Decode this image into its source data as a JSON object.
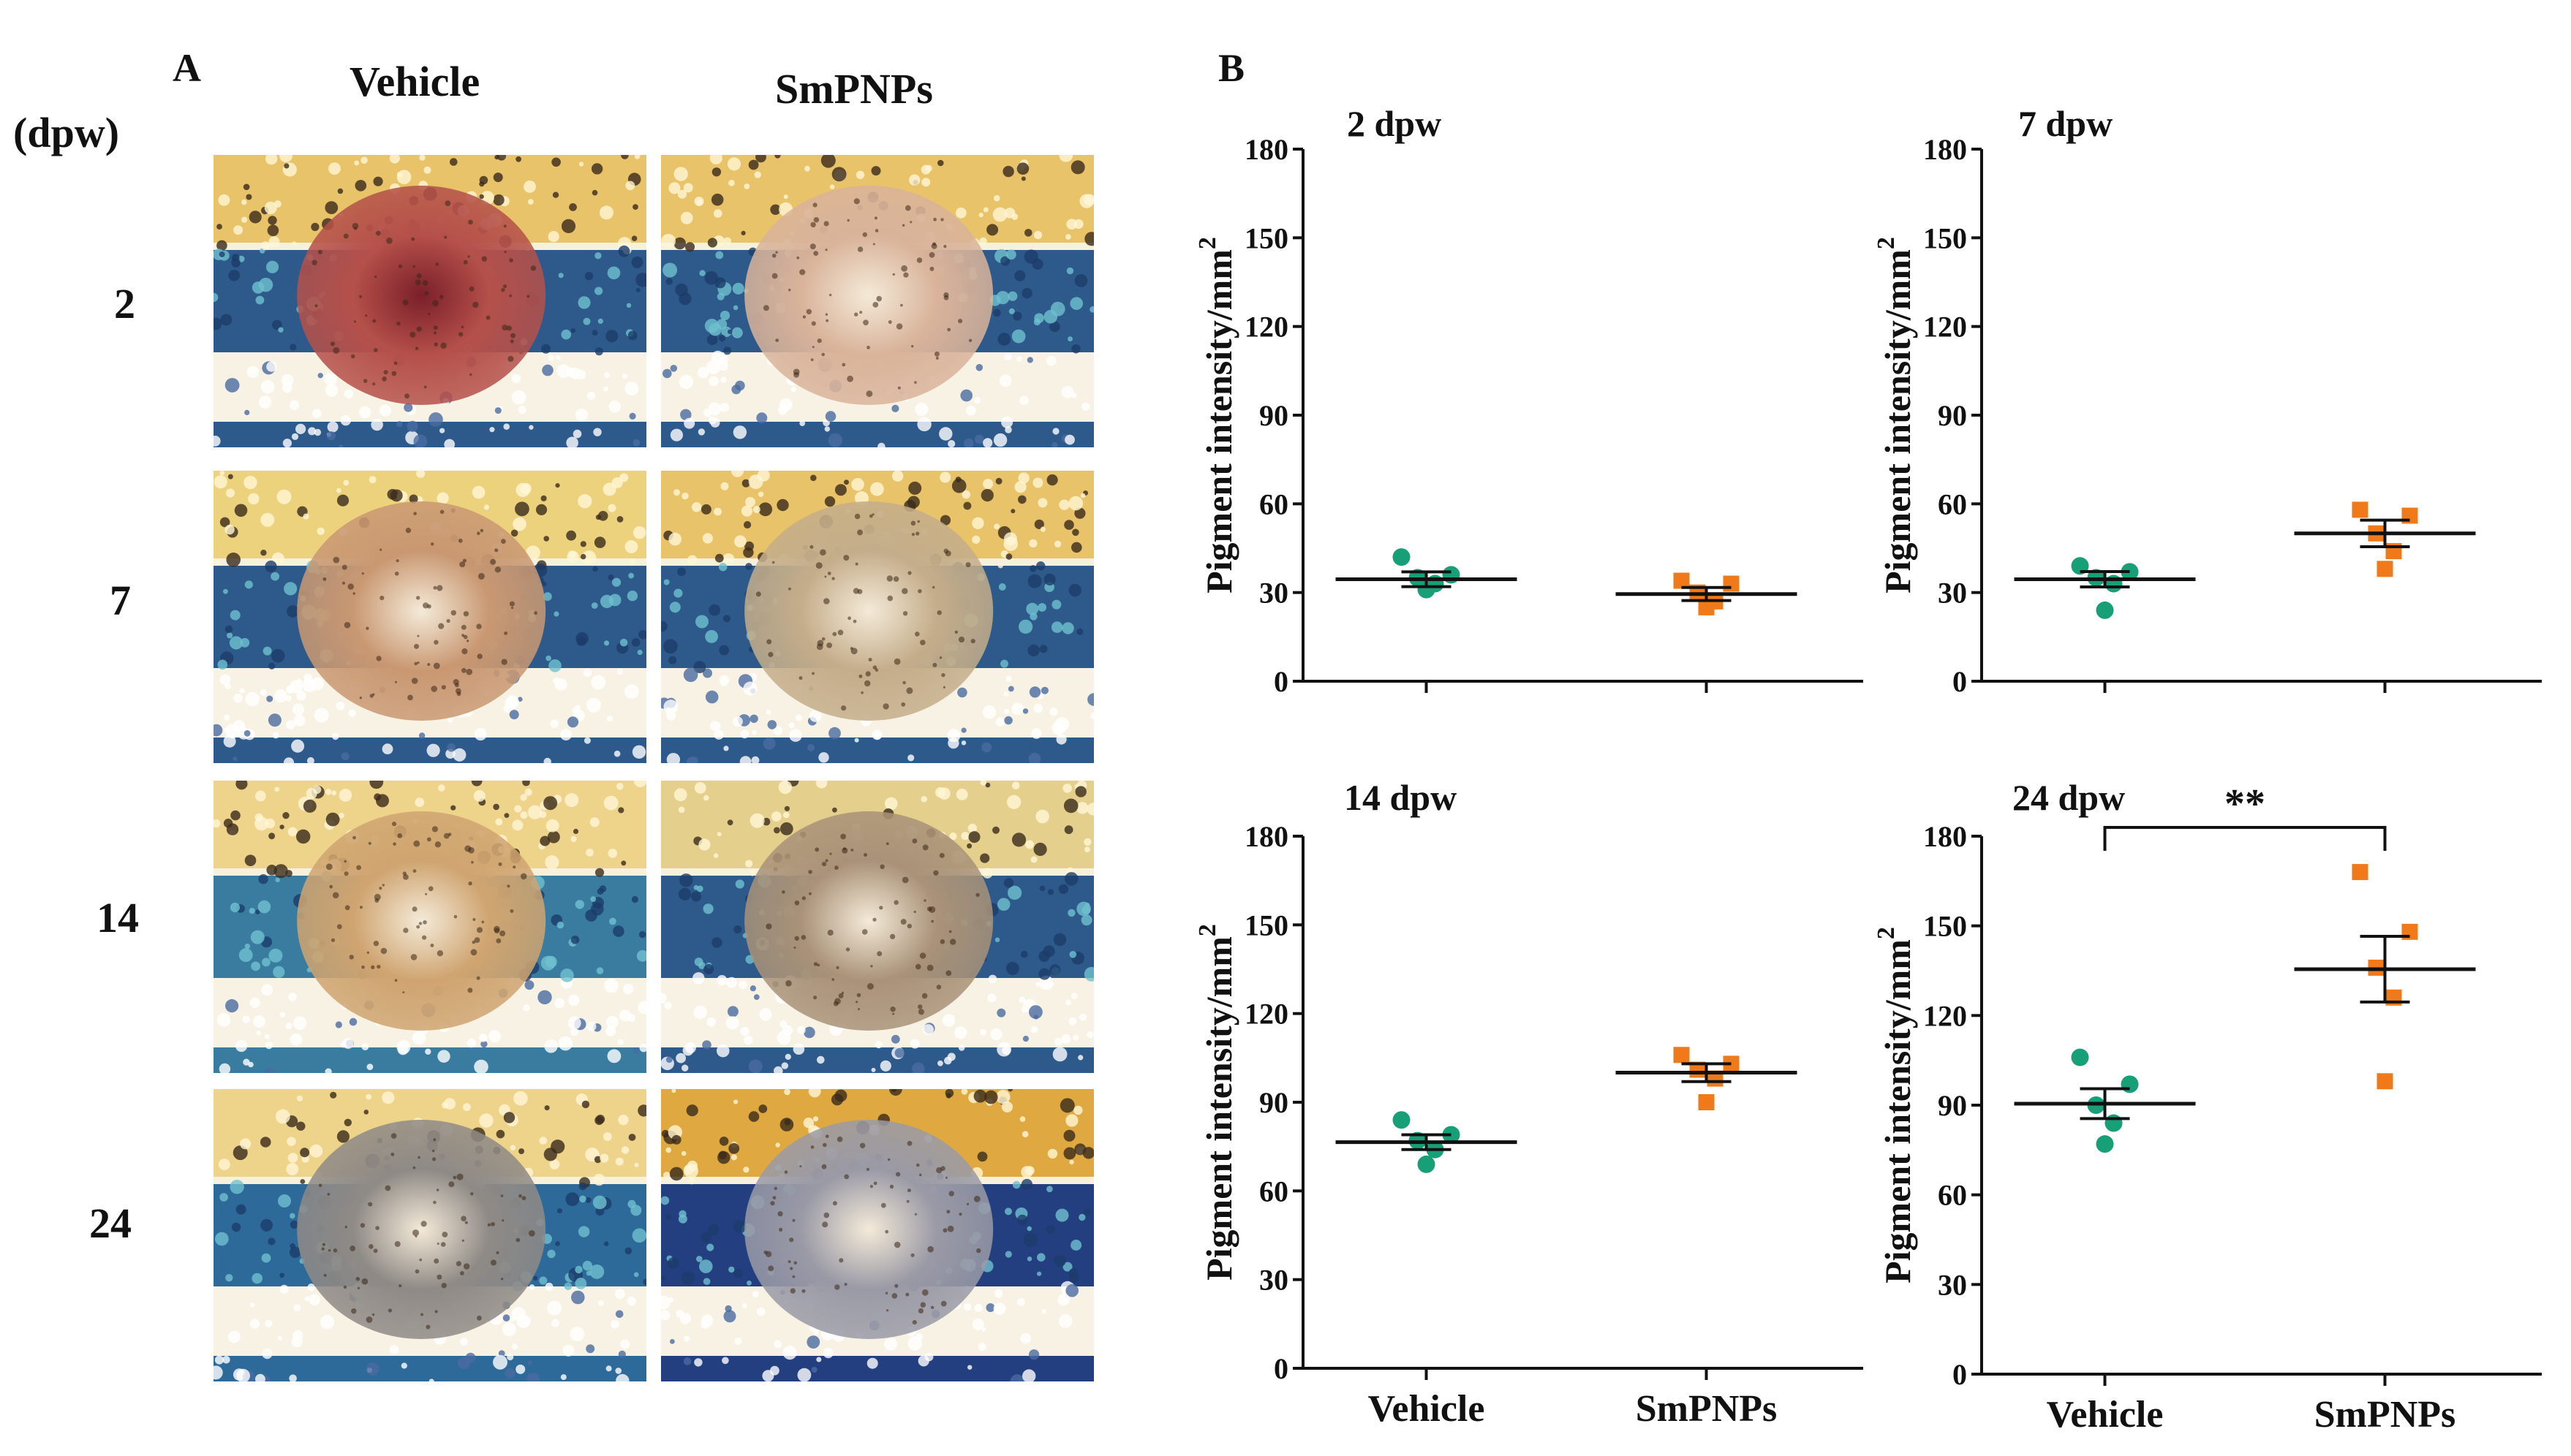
{
  "figure": {
    "panel_a_label": "A",
    "panel_b_label": "B",
    "col_headers": [
      "Vehicle",
      "SmPNPs"
    ],
    "row_unit": "(dpw)",
    "row_labels": [
      "2",
      "7",
      "14",
      "24"
    ]
  },
  "photos": [
    {
      "time": "2",
      "group": "Vehicle",
      "wound_color": "#b5504a",
      "dark_center": true,
      "gold_band": "#e8c36a",
      "blue_band": "#2d5a8a"
    },
    {
      "time": "2",
      "group": "SmPNPs",
      "wound_color": "#d9b39a",
      "dark_center": false,
      "gold_band": "#e8c36a",
      "blue_band": "#2d5a8a"
    },
    {
      "time": "7",
      "group": "Vehicle",
      "wound_color": "#c99872",
      "dark_center": false,
      "gold_band": "#edd27e",
      "blue_band": "#2d5a8a"
    },
    {
      "time": "7",
      "group": "SmPNPs",
      "wound_color": "#c4ad8a",
      "dark_center": false,
      "gold_band": "#e8c36a",
      "blue_band": "#2d5a8a"
    },
    {
      "time": "14",
      "group": "Vehicle",
      "wound_color": "#cfa470",
      "dark_center": false,
      "gold_band": "#eed38a",
      "blue_band": "#3a7ca0"
    },
    {
      "time": "14",
      "group": "SmPNPs",
      "wound_color": "#a99278",
      "dark_center": false,
      "gold_band": "#e4cf8c",
      "blue_band": "#2d5a8a"
    },
    {
      "time": "24",
      "group": "Vehicle",
      "wound_color": "#8f8a86",
      "dark_center": false,
      "gold_band": "#eed38a",
      "blue_band": "#2d6a9a"
    },
    {
      "time": "24",
      "group": "SmPNPs",
      "wound_color": "#9a9aa6",
      "dark_center": false,
      "gold_band": "#e0a840",
      "blue_band": "#243f80"
    }
  ],
  "colors": {
    "vehicle": "#17a077",
    "smpnps": "#f07a19",
    "axis": "#111111"
  },
  "chart_data": [
    {
      "type": "scatter",
      "title": "2 dpw",
      "ylabel": "Pigment intensity/mm",
      "ylabel_superscript": "2",
      "xlabel": "",
      "ylim": [
        0,
        180
      ],
      "yticks": [
        0,
        30,
        60,
        90,
        120,
        150,
        180
      ],
      "categories": [
        "Vehicle",
        "SmPNPs"
      ],
      "show_category_labels": false,
      "series": [
        {
          "name": "Vehicle",
          "marker": "circle",
          "points": [
            42,
            36,
            35,
            33,
            31
          ],
          "mean": 34.5,
          "sem": 2.5
        },
        {
          "name": "SmPNPs",
          "marker": "square",
          "points": [
            34,
            33,
            30,
            27,
            25
          ],
          "mean": 29.5,
          "sem": 2.2
        }
      ],
      "significance": null
    },
    {
      "type": "scatter",
      "title": "7 dpw",
      "ylabel": "Pigment intensity/mm",
      "ylabel_superscript": "2",
      "xlabel": "",
      "ylim": [
        0,
        180
      ],
      "yticks": [
        0,
        30,
        60,
        90,
        120,
        150,
        180
      ],
      "categories": [
        "Vehicle",
        "SmPNPs"
      ],
      "show_category_labels": false,
      "series": [
        {
          "name": "Vehicle",
          "marker": "circle",
          "points": [
            39,
            37,
            35,
            33,
            24
          ],
          "mean": 34.5,
          "sem": 2.6
        },
        {
          "name": "SmPNPs",
          "marker": "square",
          "points": [
            58,
            56,
            50,
            44,
            38
          ],
          "mean": 50,
          "sem": 4.5
        }
      ],
      "significance": null
    },
    {
      "type": "scatter",
      "title": "14 dpw",
      "ylabel": "Pigment intensity/mm",
      "ylabel_superscript": "2",
      "xlabel": "",
      "ylim": [
        0,
        180
      ],
      "yticks": [
        0,
        30,
        60,
        90,
        120,
        150,
        180
      ],
      "categories": [
        "Vehicle",
        "SmPNPs"
      ],
      "show_category_labels": true,
      "series": [
        {
          "name": "Vehicle",
          "marker": "circle",
          "points": [
            84,
            79,
            77,
            74,
            69
          ],
          "mean": 76.5,
          "sem": 2.5
        },
        {
          "name": "SmPNPs",
          "marker": "square",
          "points": [
            106,
            103,
            101,
            98,
            90
          ],
          "mean": 100,
          "sem": 3
        }
      ],
      "significance": null
    },
    {
      "type": "scatter",
      "title": "24 dpw",
      "ylabel": "Pigment intensity/mm",
      "ylabel_superscript": "2",
      "xlabel": "",
      "ylim": [
        0,
        180
      ],
      "yticks": [
        0,
        30,
        60,
        90,
        120,
        150,
        180
      ],
      "categories": [
        "Vehicle",
        "SmPNPs"
      ],
      "show_category_labels": true,
      "series": [
        {
          "name": "Vehicle",
          "marker": "circle",
          "points": [
            106,
            97,
            90,
            84,
            77
          ],
          "mean": 90.5,
          "sem": 5
        },
        {
          "name": "SmPNPs",
          "marker": "square",
          "points": [
            168,
            148,
            136,
            126,
            98
          ],
          "mean": 135.5,
          "sem": 11
        }
      ],
      "significance": {
        "label": "**",
        "between": [
          "Vehicle",
          "SmPNPs"
        ]
      }
    }
  ]
}
